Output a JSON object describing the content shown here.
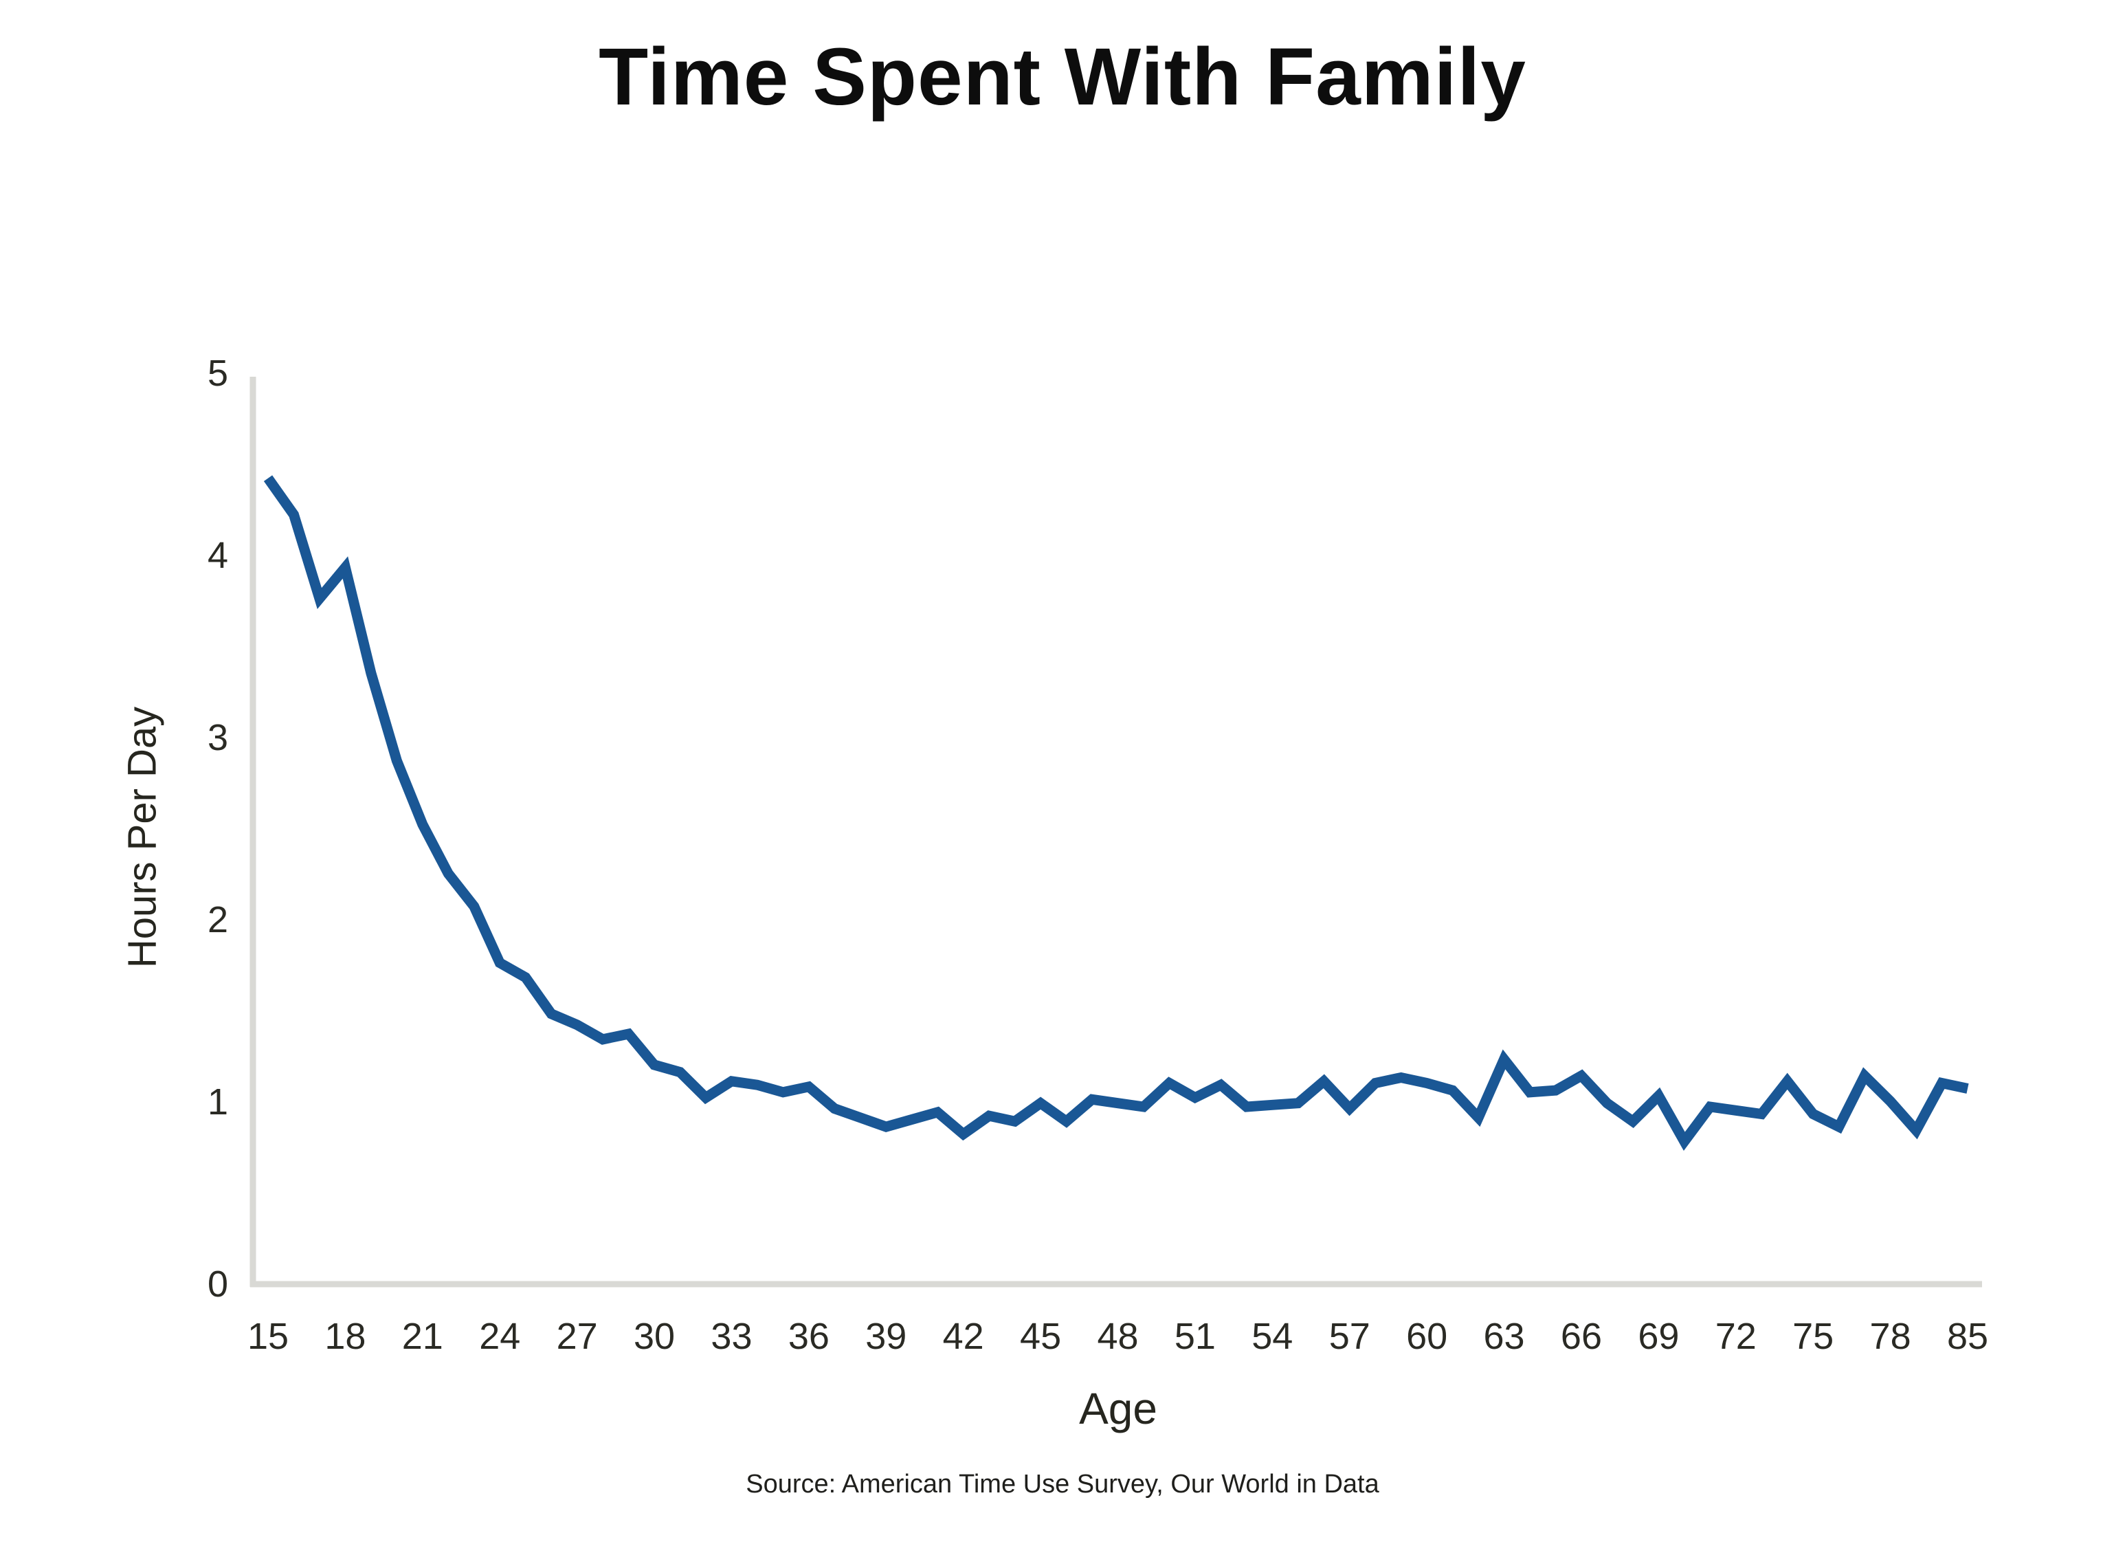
{
  "title": "Time Spent With Family",
  "source_note": "Source: American Time Use Survey, Our World in Data",
  "colors": {
    "line": "#1a5795",
    "axis": "#d9d9d5",
    "title_text": "#0d0d0d",
    "tick_text": "#2a2a24"
  },
  "chart_data": {
    "type": "line",
    "title": "Time Spent With Family",
    "xlabel": "Age",
    "ylabel": "Hours Per Day",
    "x": [
      15,
      16,
      17,
      18,
      19,
      20,
      21,
      22,
      23,
      24,
      25,
      26,
      27,
      28,
      29,
      30,
      31,
      32,
      33,
      34,
      35,
      36,
      37,
      38,
      39,
      40,
      41,
      42,
      43,
      44,
      45,
      46,
      47,
      48,
      49,
      50,
      51,
      52,
      53,
      54,
      55,
      56,
      57,
      58,
      59,
      60,
      61,
      62,
      63,
      64,
      65,
      66,
      67,
      68,
      69,
      70,
      71,
      72,
      73,
      74,
      75,
      76,
      77,
      78,
      79,
      80,
      85
    ],
    "values": [
      4.42,
      4.22,
      3.76,
      3.93,
      3.35,
      2.87,
      2.52,
      2.25,
      2.07,
      1.76,
      1.68,
      1.48,
      1.42,
      1.34,
      1.37,
      1.2,
      1.16,
      1.02,
      1.11,
      1.09,
      1.05,
      1.08,
      0.96,
      0.91,
      0.86,
      0.9,
      0.94,
      0.82,
      0.92,
      0.89,
      0.99,
      0.89,
      1.01,
      0.99,
      0.97,
      1.1,
      1.02,
      1.09,
      0.97,
      0.98,
      0.99,
      1.11,
      0.96,
      1.1,
      1.13,
      1.1,
      1.06,
      0.91,
      1.23,
      1.05,
      1.06,
      1.14,
      0.99,
      0.89,
      1.03,
      0.78,
      0.97,
      0.95,
      0.93,
      1.11,
      0.93,
      0.86,
      1.14,
      1.0,
      0.84,
      1.1,
      1.07
    ],
    "x_tick_labels": [
      "15",
      "18",
      "21",
      "24",
      "27",
      "30",
      "33",
      "36",
      "39",
      "42",
      "45",
      "48",
      "51",
      "54",
      "57",
      "60",
      "63",
      "66",
      "69",
      "72",
      "75",
      "78",
      "85"
    ],
    "y_ticks": [
      0,
      1,
      2,
      3,
      4,
      5
    ],
    "ylim": [
      0,
      5
    ],
    "grid": false,
    "legend": false
  }
}
